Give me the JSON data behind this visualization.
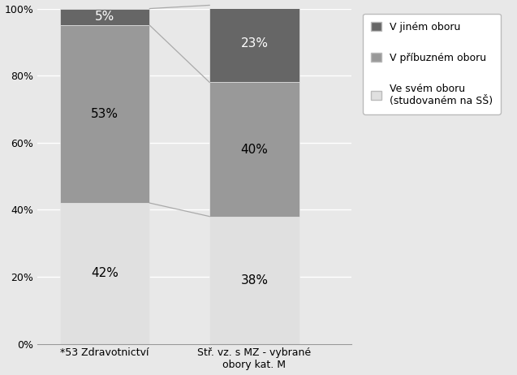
{
  "categories": [
    "*53 Zdravotnictví",
    "Stř. vz. s MZ - vybrané\nobory kat. M"
  ],
  "series": [
    {
      "label": "Ve svém oboru\n(studovaném na SŠ)",
      "values": [
        42,
        38
      ],
      "color": "#e0e0e0"
    },
    {
      "label": "V příbuzném oboru",
      "values": [
        53,
        40
      ],
      "color": "#999999"
    },
    {
      "label": "V jiném oboru",
      "values": [
        5,
        23
      ],
      "color": "#666666"
    }
  ],
  "ylim": [
    0,
    100
  ],
  "yticks": [
    0,
    20,
    40,
    60,
    80,
    100
  ],
  "ytick_labels": [
    "0%",
    "20%",
    "40%",
    "60%",
    "80%",
    "100%"
  ],
  "bar_width": 0.6,
  "bar_positions": [
    0,
    1
  ],
  "background_color": "#e8e8e8",
  "plot_bg_color": "#e8e8e8",
  "connect_line_color": "#aaaaaa",
  "label_fontsize": 11,
  "tick_fontsize": 9,
  "legend_fontsize": 9,
  "top_label_color_dark": "#ffffff",
  "other_label_color": "#000000"
}
